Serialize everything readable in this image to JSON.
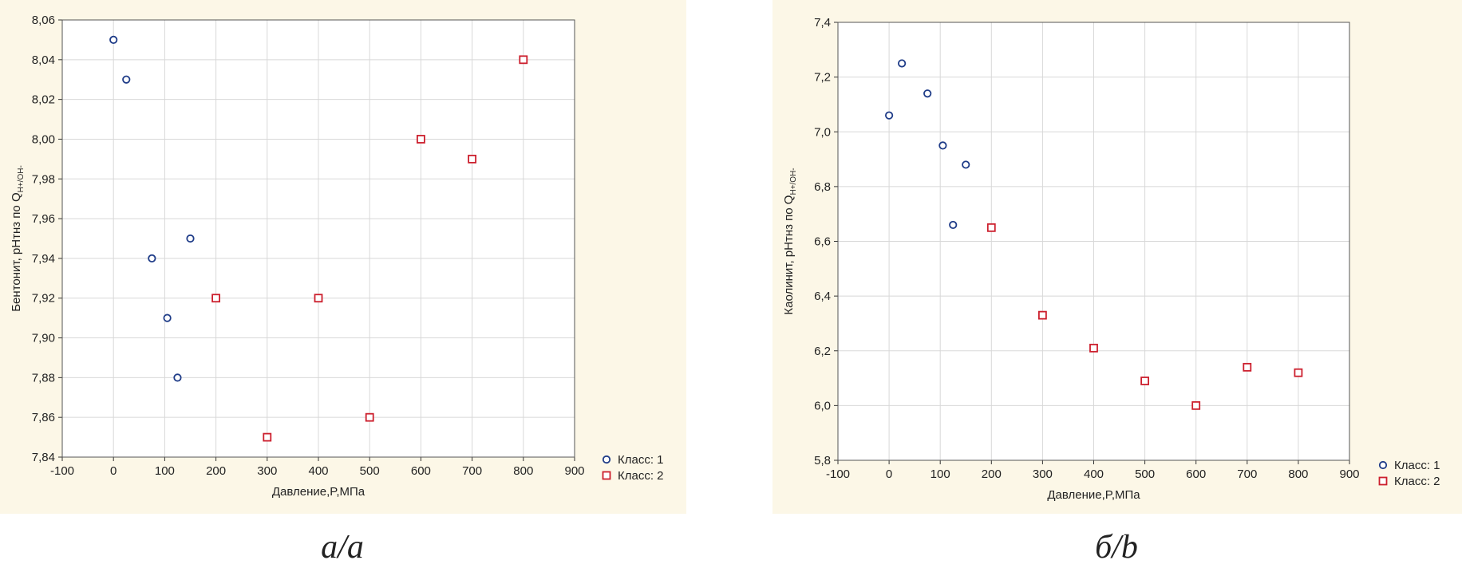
{
  "chart_data": [
    {
      "type": "scatter",
      "xlabel": "Давление,P,МПа",
      "ylabel": "Бентонит, pHтнз по Q",
      "ylabel_sub": "H+/OH-",
      "xlim": [
        -100,
        900
      ],
      "ylim": [
        7.84,
        8.06
      ],
      "xticks": [
        "-100",
        "0",
        "100",
        "200",
        "300",
        "400",
        "500",
        "600",
        "700",
        "800",
        "900"
      ],
      "yticks": [
        "7,84",
        "7,86",
        "7,88",
        "7,90",
        "7,92",
        "7,94",
        "7,96",
        "7,98",
        "8,00",
        "8,02",
        "8,04",
        "8,06"
      ],
      "grid": true,
      "legend_position": "bottom-right-outside",
      "series": [
        {
          "name": "Класс: 1",
          "marker": "circle",
          "color": "#1f3c88",
          "points": [
            [
              0,
              8.05
            ],
            [
              25,
              8.03
            ],
            [
              75,
              7.94
            ],
            [
              105,
              7.91
            ],
            [
              125,
              7.88
            ],
            [
              150,
              7.95
            ]
          ]
        },
        {
          "name": "Класс: 2",
          "marker": "square",
          "color": "#cc1f2d",
          "points": [
            [
              200,
              7.92
            ],
            [
              300,
              7.85
            ],
            [
              400,
              7.92
            ],
            [
              500,
              7.86
            ],
            [
              600,
              8.0
            ],
            [
              700,
              7.99
            ],
            [
              800,
              8.04
            ]
          ]
        }
      ]
    },
    {
      "type": "scatter",
      "xlabel": "Давление,P,МПа",
      "ylabel": "Каолинит, pHтнз по Q",
      "ylabel_sub": "H+/OH-",
      "xlim": [
        -100,
        900
      ],
      "ylim": [
        5.8,
        7.4
      ],
      "xticks": [
        "-100",
        "0",
        "100",
        "200",
        "300",
        "400",
        "500",
        "600",
        "700",
        "800",
        "900"
      ],
      "yticks": [
        "5,8",
        "6,0",
        "6,2",
        "6,4",
        "6,6",
        "6,8",
        "7,0",
        "7,2",
        "7,4"
      ],
      "grid": true,
      "legend_position": "bottom-right-outside",
      "series": [
        {
          "name": "Класс: 1",
          "marker": "circle",
          "color": "#1f3c88",
          "points": [
            [
              0,
              7.06
            ],
            [
              25,
              7.25
            ],
            [
              75,
              7.14
            ],
            [
              105,
              6.95
            ],
            [
              125,
              6.66
            ],
            [
              150,
              6.88
            ]
          ]
        },
        {
          "name": "Класс: 2",
          "marker": "square",
          "color": "#cc1f2d",
          "points": [
            [
              200,
              6.65
            ],
            [
              300,
              6.33
            ],
            [
              400,
              6.21
            ],
            [
              500,
              6.09
            ],
            [
              600,
              6.0
            ],
            [
              700,
              6.14
            ],
            [
              800,
              6.12
            ]
          ]
        }
      ]
    }
  ],
  "captions": [
    "а/а",
    "б/b"
  ]
}
